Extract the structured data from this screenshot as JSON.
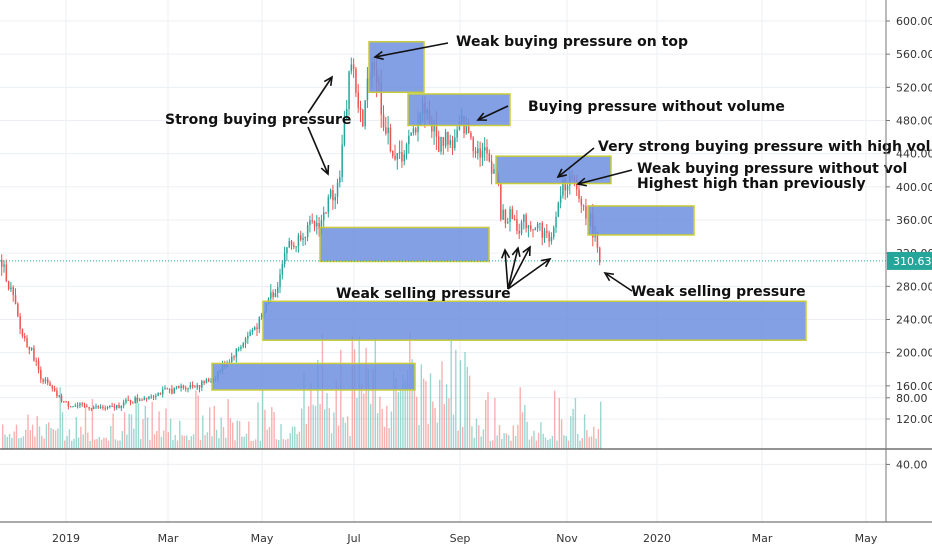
{
  "chart_data": {
    "type": "candlestick",
    "title": "",
    "current_price": {
      "value": 310.63,
      "label": "310.63",
      "color": "#26a69a"
    },
    "y_axis_main": {
      "ticks": [
        600,
        560,
        520,
        480,
        440,
        400,
        360,
        320,
        280,
        240,
        200,
        160,
        120
      ],
      "tick_labels": [
        "600.00",
        "560.00",
        "520.00",
        "480.00",
        "440.00",
        "400.00",
        "360.00",
        "320.00",
        "280.00",
        "240.00",
        "200.00",
        "160.00",
        "120.00"
      ]
    },
    "y_axis_volume": {
      "ticks": [
        80,
        40
      ],
      "tick_labels": [
        "80.00",
        "40.00"
      ]
    },
    "x_axis": {
      "tick_labels": [
        "2019",
        "Mar",
        "May",
        "Jul",
        "Sep",
        "Nov",
        "2020",
        "Mar",
        "May"
      ]
    },
    "colors": {
      "up": "#26a69a",
      "down": "#ef5350",
      "zone_fill": "#6d8fe0",
      "zone_border": "#c8cc3a",
      "grid": "#eceff3"
    },
    "price_path": [
      [
        0,
        312
      ],
      [
        6,
        290
      ],
      [
        12,
        268
      ],
      [
        20,
        225
      ],
      [
        30,
        205
      ],
      [
        40,
        172
      ],
      [
        55,
        150
      ],
      [
        65,
        138
      ],
      [
        80,
        135
      ],
      [
        95,
        134
      ],
      [
        110,
        133
      ],
      [
        125,
        140
      ],
      [
        140,
        145
      ],
      [
        160,
        152
      ],
      [
        180,
        158
      ],
      [
        200,
        162
      ],
      [
        212,
        168
      ],
      [
        220,
        180
      ],
      [
        235,
        200
      ],
      [
        250,
        225
      ],
      [
        262,
        242
      ],
      [
        268,
        268
      ],
      [
        275,
        272
      ],
      [
        280,
        305
      ],
      [
        287,
        332
      ],
      [
        293,
        328
      ],
      [
        300,
        342
      ],
      [
        310,
        352
      ],
      [
        320,
        356
      ],
      [
        330,
        390
      ],
      [
        338,
        405
      ],
      [
        345,
        490
      ],
      [
        350,
        560
      ],
      [
        356,
        510
      ],
      [
        362,
        470
      ],
      [
        368,
        540
      ],
      [
        372,
        555
      ],
      [
        378,
        520
      ],
      [
        384,
        470
      ],
      [
        390,
        450
      ],
      [
        396,
        430
      ],
      [
        402,
        442
      ],
      [
        410,
        455
      ],
      [
        416,
        480
      ],
      [
        424,
        500
      ],
      [
        432,
        470
      ],
      [
        438,
        450
      ],
      [
        445,
        462
      ],
      [
        452,
        450
      ],
      [
        460,
        475
      ],
      [
        466,
        470
      ],
      [
        472,
        455
      ],
      [
        478,
        445
      ],
      [
        484,
        440
      ],
      [
        490,
        430
      ],
      [
        496,
        415
      ],
      [
        500,
        368
      ],
      [
        505,
        360
      ],
      [
        512,
        365
      ],
      [
        518,
        350
      ],
      [
        524,
        360
      ],
      [
        530,
        352
      ],
      [
        536,
        355
      ],
      [
        542,
        345
      ],
      [
        548,
        338
      ],
      [
        554,
        350
      ],
      [
        560,
        395
      ],
      [
        566,
        410
      ],
      [
        572,
        405
      ],
      [
        578,
        385
      ],
      [
        584,
        372
      ],
      [
        590,
        360
      ],
      [
        596,
        330
      ],
      [
        600,
        310
      ]
    ],
    "zones": [
      {
        "x1": 369,
        "x2": 424,
        "y_top": 575,
        "y_bottom": 514
      },
      {
        "x1": 408,
        "x2": 510,
        "y_top": 512,
        "y_bottom": 474
      },
      {
        "x1": 496,
        "x2": 611,
        "y_top": 437,
        "y_bottom": 404
      },
      {
        "x1": 588,
        "x2": 694,
        "y_top": 377,
        "y_bottom": 342
      },
      {
        "x1": 320,
        "x2": 489,
        "y_top": 351,
        "y_bottom": 310
      },
      {
        "x1": 263,
        "x2": 806,
        "y_top": 262,
        "y_bottom": 215
      },
      {
        "x1": 212,
        "x2": 415,
        "y_top": 187,
        "y_bottom": 155
      }
    ],
    "annotations": [
      "Weak buying pressure on top",
      "Buying pressure without volume",
      "Strong buying pressure",
      "Very strong buying pressure with high vol",
      "Weak buying pressure without vol",
      "Highest high than previously",
      "Weak selling pressure",
      "Weak selling pressure"
    ]
  }
}
